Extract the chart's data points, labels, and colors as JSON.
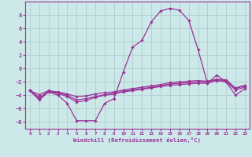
{
  "xlabel": "Windchill (Refroidissement éolien,°C)",
  "xlim": [
    -0.5,
    23.5
  ],
  "ylim": [
    -9,
    10
  ],
  "xticks": [
    0,
    1,
    2,
    3,
    4,
    5,
    6,
    7,
    8,
    9,
    10,
    11,
    12,
    13,
    14,
    15,
    16,
    17,
    18,
    19,
    20,
    21,
    22,
    23
  ],
  "yticks": [
    -8,
    -6,
    -4,
    -2,
    0,
    2,
    4,
    6,
    8
  ],
  "bg_color": "#cde8e8",
  "line_color": "#993399",
  "grid_color": "#b0cccc",
  "curve1_y": [
    -3.3,
    -4.7,
    -3.5,
    -4.0,
    -5.2,
    -7.8,
    -7.8,
    -7.8,
    -5.2,
    -4.5,
    -0.5,
    3.2,
    4.2,
    7.0,
    8.6,
    9.0,
    8.7,
    7.2,
    2.8,
    -2.2,
    -1.0,
    -2.0,
    -4.0,
    -3.0
  ],
  "curve2_y": [
    -3.3,
    -4.5,
    -3.5,
    -3.7,
    -4.2,
    -5.0,
    -4.8,
    -4.3,
    -4.0,
    -3.8,
    -3.5,
    -3.3,
    -3.1,
    -2.9,
    -2.7,
    -2.5,
    -2.4,
    -2.3,
    -2.2,
    -2.2,
    -1.8,
    -2.0,
    -3.2,
    -2.8
  ],
  "curve3_y": [
    -3.3,
    -4.3,
    -3.4,
    -3.6,
    -4.0,
    -4.7,
    -4.5,
    -4.2,
    -3.9,
    -3.7,
    -3.4,
    -3.2,
    -3.0,
    -2.8,
    -2.6,
    -2.3,
    -2.2,
    -2.1,
    -2.0,
    -2.0,
    -1.7,
    -1.8,
    -3.0,
    -2.6
  ],
  "curve4_y": [
    -3.3,
    -3.9,
    -3.3,
    -3.5,
    -3.8,
    -4.2,
    -4.1,
    -3.8,
    -3.6,
    -3.5,
    -3.2,
    -3.0,
    -2.8,
    -2.6,
    -2.4,
    -2.1,
    -2.0,
    -1.9,
    -1.8,
    -1.9,
    -1.6,
    -1.7,
    -2.9,
    -2.5
  ]
}
